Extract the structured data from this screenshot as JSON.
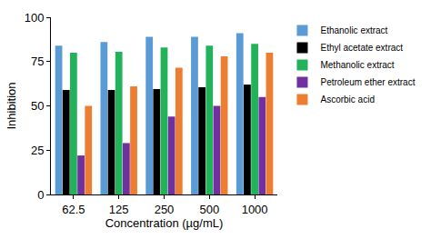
{
  "chart_data": {
    "type": "bar",
    "x_label": "Concentration (µg/mL)",
    "y_label": "Inhibition",
    "categories": [
      "62.5",
      "125",
      "250",
      "500",
      "1000"
    ],
    "series": [
      {
        "name": "Ethanolic extract",
        "color": "#5b9bd5",
        "values": [
          84,
          86,
          89,
          89,
          91
        ]
      },
      {
        "name": "Ethyl acetate extract",
        "color": "#000000",
        "values": [
          59,
          59,
          59.5,
          60.5,
          62
        ]
      },
      {
        "name": "Methanolic extract",
        "color": "#22b35a",
        "values": [
          80,
          80.5,
          83,
          84,
          85
        ]
      },
      {
        "name": "Petroleum ether extract",
        "color": "#7030a0",
        "values": [
          22,
          29,
          44,
          50,
          55
        ]
      },
      {
        "name": "Ascorbic acid",
        "color": "#ed7d31",
        "values": [
          50,
          61,
          71.5,
          78,
          80
        ]
      }
    ],
    "ylim": [
      0,
      100
    ],
    "yticks": [
      0,
      25,
      50,
      75,
      100
    ],
    "grid": false,
    "legend": "right"
  }
}
